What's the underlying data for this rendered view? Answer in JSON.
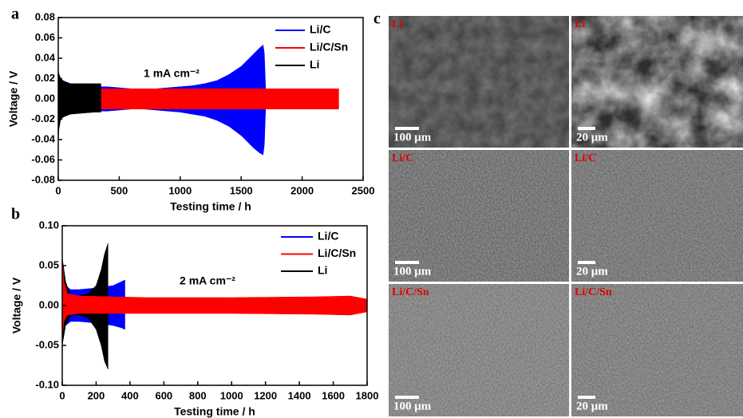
{
  "chart_data": [
    {
      "type": "band",
      "panel": "a",
      "annotation": "1 mA cm⁻²",
      "xlabel": "Testing time / h",
      "ylabel": "Voltage / V",
      "xlim": [
        0,
        2500
      ],
      "xticks": [
        0,
        500,
        1000,
        1500,
        2000,
        2500
      ],
      "ylim": [
        -0.08,
        0.08
      ],
      "yticks": [
        {
          "value": -0.08,
          "label": "-0.08"
        },
        {
          "value": -0.06,
          "label": "-0.06"
        },
        {
          "value": -0.04,
          "label": "-0.04"
        },
        {
          "value": -0.02,
          "label": "-0.02"
        },
        {
          "value": 0,
          "label": "0.00"
        },
        {
          "value": 0.02,
          "label": "0.02"
        },
        {
          "value": 0.04,
          "label": "0.04"
        },
        {
          "value": 0.06,
          "label": "0.06"
        },
        {
          "value": 0.08,
          "label": "0.08"
        }
      ],
      "legend": "upper right",
      "series": [
        {
          "name": "Li/C",
          "color": "#0000ff",
          "x": [
            0,
            100,
            200,
            300,
            400,
            500,
            600,
            700,
            800,
            900,
            1000,
            1100,
            1200,
            1300,
            1400,
            1500,
            1550,
            1600,
            1650,
            1680,
            1690,
            1700
          ],
          "high": [
            0.02,
            0.015,
            0.013,
            0.012,
            0.012,
            0.011,
            0.01,
            0.01,
            0.01,
            0.011,
            0.012,
            0.013,
            0.015,
            0.018,
            0.024,
            0.032,
            0.038,
            0.044,
            0.05,
            0.053,
            0.045,
            0.012
          ],
          "low": [
            -0.02,
            -0.015,
            -0.013,
            -0.012,
            -0.012,
            -0.011,
            -0.01,
            -0.01,
            -0.011,
            -0.012,
            -0.013,
            -0.015,
            -0.017,
            -0.021,
            -0.027,
            -0.036,
            -0.042,
            -0.048,
            -0.053,
            -0.055,
            -0.045,
            -0.012
          ]
        },
        {
          "name": "Li/C/Sn",
          "color": "#ff0000",
          "x": [
            0,
            5,
            20,
            100,
            500,
            1000,
            1500,
            2000,
            2250,
            2300
          ],
          "high": [
            0.01,
            0.012,
            0.01,
            0.01,
            0.01,
            0.01,
            0.01,
            0.01,
            0.01,
            0.01
          ],
          "low": [
            -0.045,
            -0.03,
            -0.012,
            -0.01,
            -0.01,
            -0.01,
            -0.01,
            -0.01,
            -0.01,
            -0.01
          ]
        },
        {
          "name": "Li",
          "color": "#000000",
          "x": [
            0,
            5,
            20,
            50,
            100,
            200,
            300,
            350
          ],
          "high": [
            0.03,
            0.025,
            0.02,
            0.017,
            0.015,
            0.015,
            0.015,
            0.015
          ],
          "low": [
            -0.04,
            -0.03,
            -0.02,
            -0.017,
            -0.015,
            -0.014,
            -0.013,
            -0.013
          ]
        }
      ]
    },
    {
      "type": "band",
      "panel": "b",
      "annotation": "2 mA cm⁻²",
      "xlabel": "Testing time / h",
      "ylabel": "Voltage / V",
      "xlim": [
        0,
        1800
      ],
      "xticks": [
        0,
        200,
        400,
        600,
        800,
        1000,
        1200,
        1400,
        1600,
        1800
      ],
      "ylim": [
        -0.1,
        0.1
      ],
      "yticks": [
        {
          "value": -0.1,
          "label": "-0.10"
        },
        {
          "value": -0.05,
          "label": "-0.05"
        },
        {
          "value": 0,
          "label": "0.00"
        },
        {
          "value": 0.05,
          "label": "0.05"
        },
        {
          "value": 0.1,
          "label": "0.10"
        }
      ],
      "legend": "upper right",
      "series": [
        {
          "name": "Li/C",
          "color": "#0000ff",
          "x": [
            0,
            20,
            50,
            100,
            200,
            300,
            350,
            370
          ],
          "high": [
            0.04,
            0.025,
            0.02,
            0.02,
            0.022,
            0.025,
            0.03,
            0.032
          ],
          "low": [
            -0.03,
            -0.025,
            -0.02,
            -0.02,
            -0.022,
            -0.025,
            -0.028,
            -0.03
          ]
        },
        {
          "name": "Li/C/Sn",
          "color": "#ff0000",
          "x": [
            0,
            10,
            30,
            100,
            500,
            1000,
            1500,
            1700,
            1800
          ],
          "high": [
            0.06,
            0.03,
            0.015,
            0.012,
            0.01,
            0.01,
            0.011,
            0.012,
            0.008
          ],
          "low": [
            -0.04,
            -0.02,
            -0.012,
            -0.01,
            -0.01,
            -0.01,
            -0.011,
            -0.012,
            -0.008
          ]
        },
        {
          "name": "Li",
          "color": "#000000",
          "x": [
            0,
            20,
            50,
            100,
            150,
            200,
            230,
            250,
            270
          ],
          "high": [
            0.06,
            0.03,
            0.012,
            0.012,
            0.015,
            0.025,
            0.045,
            0.065,
            0.078
          ],
          "low": [
            -0.05,
            -0.025,
            -0.012,
            -0.012,
            -0.015,
            -0.03,
            -0.05,
            -0.07,
            -0.08
          ]
        }
      ]
    }
  ],
  "sem_panel": {
    "panel": "c",
    "images": [
      {
        "label": "Li",
        "scale": "100 μm"
      },
      {
        "label": "Li",
        "scale": "20 μm"
      },
      {
        "label": "Li/C",
        "scale": "100 μm"
      },
      {
        "label": "Li/C",
        "scale": "20 μm"
      },
      {
        "label": "Li/C/Sn",
        "scale": "100 μm"
      },
      {
        "label": "Li/C/Sn",
        "scale": "20 μm"
      }
    ]
  }
}
